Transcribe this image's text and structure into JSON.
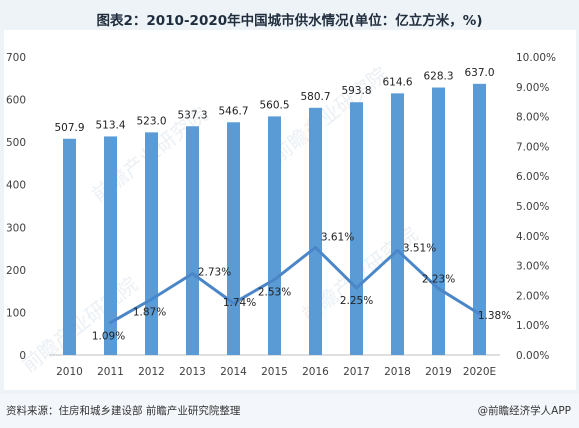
{
  "title": "图表2：2010-2020年中国城市供水情况(单位：亿立方米，%)",
  "footer": {
    "source": "资料来源：住房和城乡建设部 前瞻产业研究院整理",
    "brand": "@前瞻经济学人APP"
  },
  "watermark": "前瞻产业研究院",
  "colors": {
    "bar": "#5b9bd5",
    "line": "#4a86c8",
    "axis_text": "#404040",
    "grid": "#e6e6e6"
  },
  "chart_data": {
    "type": "bar",
    "categories": [
      "2010",
      "2011",
      "2012",
      "2013",
      "2014",
      "2015",
      "2016",
      "2017",
      "2018",
      "2019",
      "2020E"
    ],
    "series": [
      {
        "type": "bar",
        "axis": "left",
        "values": [
          507.9,
          513.4,
          523.0,
          537.3,
          546.7,
          560.5,
          580.7,
          593.8,
          614.6,
          628.3,
          637.0
        ],
        "labels": [
          "507.9",
          "513.4",
          "523.0",
          "537.3",
          "546.7",
          "560.5",
          "580.7",
          "593.8",
          "614.6",
          "628.3",
          "637.0"
        ]
      },
      {
        "type": "line",
        "axis": "right",
        "values": [
          null,
          1.09,
          1.87,
          2.73,
          1.74,
          2.53,
          3.61,
          2.25,
          3.51,
          2.23,
          1.38
        ],
        "labels": [
          null,
          "1.09%",
          "1.87%",
          "2.73%",
          "1.74%",
          "2.53%",
          "3.61%",
          "2.25%",
          "3.51%",
          "2.23%",
          "1.38%"
        ]
      }
    ],
    "ylim": [
      0,
      700
    ],
    "yticks": [
      "0",
      "100",
      "200",
      "300",
      "400",
      "500",
      "600",
      "700"
    ],
    "y2lim": [
      0,
      10
    ],
    "y2ticks": [
      "0.00%",
      "1.00%",
      "2.00%",
      "3.00%",
      "4.00%",
      "5.00%",
      "6.00%",
      "7.00%",
      "8.00%",
      "9.00%",
      "10.00%"
    ],
    "grid": false,
    "legend": "none"
  }
}
